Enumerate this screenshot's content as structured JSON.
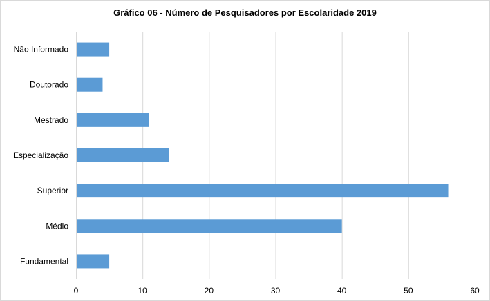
{
  "chart_data": {
    "type": "bar",
    "orientation": "horizontal",
    "title": "Gráfico 06 - Número de Pesquisadores  por Escolaridade 2019",
    "categories": [
      "Não Informado",
      "Doutorado",
      "Mestrado",
      "Especialização",
      "Superior",
      "Médio",
      "Fundamental"
    ],
    "values": [
      5,
      4,
      11,
      14,
      56,
      40,
      5
    ],
    "xlim": [
      0,
      60
    ],
    "xticks": [
      0,
      10,
      20,
      30,
      40,
      50,
      60
    ],
    "xlabel": "",
    "ylabel": "",
    "grid": "vertical",
    "legend": "none",
    "bar_color": "#5b9bd5"
  }
}
